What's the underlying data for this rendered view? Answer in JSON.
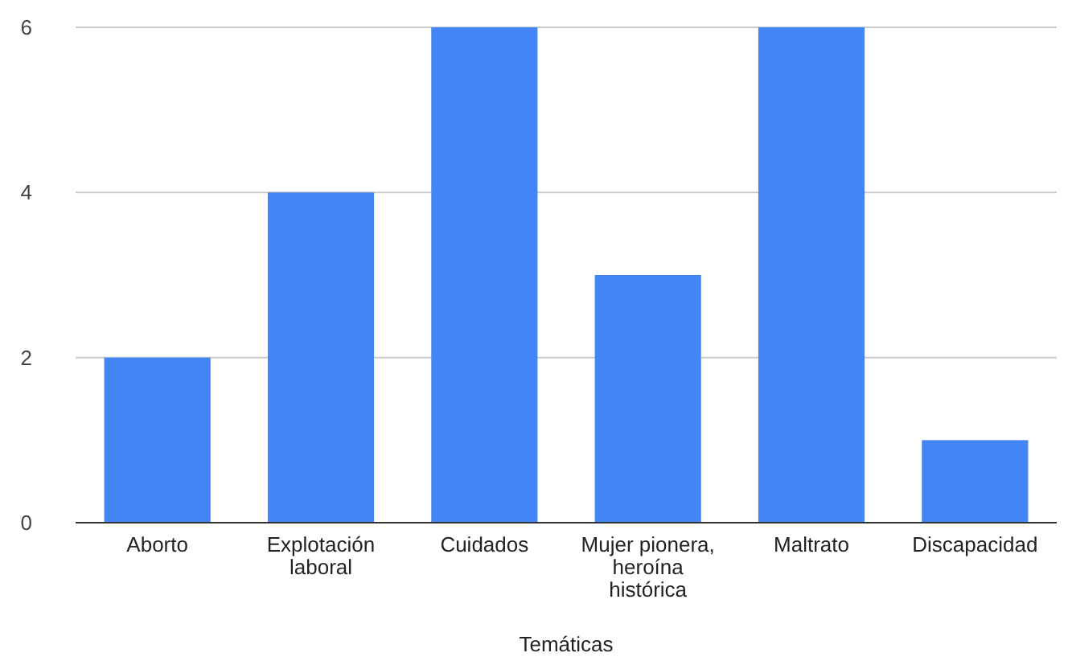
{
  "chart_data": {
    "type": "bar",
    "xlabel": "Temáticas",
    "categories": [
      "Aborto",
      "Explotación laboral",
      "Cuidados",
      "Mujer pionera, heroína histórica",
      "Maltrato",
      "Discapacidad"
    ],
    "values": [
      2,
      4,
      6,
      3,
      6,
      1
    ],
    "color": "#4285f4",
    "ylim": [
      0,
      6
    ],
    "yticks": [
      0,
      2,
      4,
      6
    ],
    "grid": "y"
  }
}
